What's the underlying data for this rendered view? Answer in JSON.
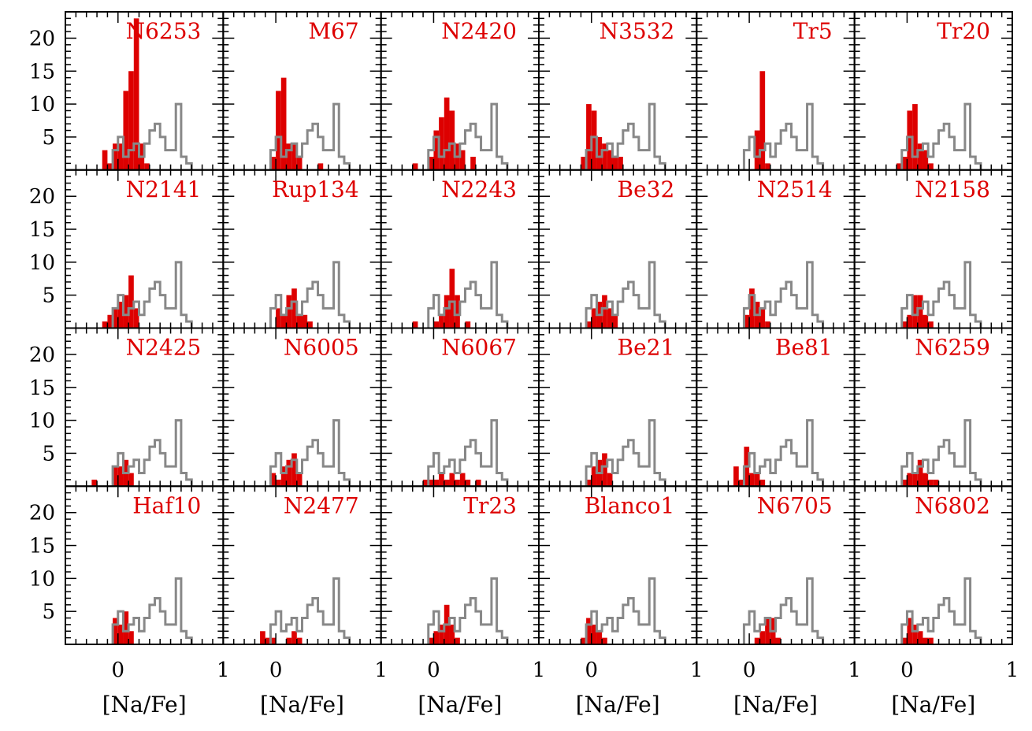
{
  "chart_data": {
    "type": "histogram-grid",
    "xlabel": "[Na/Fe]",
    "x_tick_labels": [
      "0",
      "1"
    ],
    "y_tick_labels": [
      "5",
      "10",
      "15",
      "20"
    ],
    "xlim": [
      -0.5,
      1.0
    ],
    "ylim": [
      0,
      24
    ],
    "bin_width": 0.05,
    "colors": {
      "cluster": "#dd0000",
      "reference": "#888888",
      "axes": "#000000"
    },
    "reference_histogram": {
      "bin_starts": [
        -0.05,
        0.0,
        0.05,
        0.1,
        0.15,
        0.2,
        0.25,
        0.3,
        0.35,
        0.4,
        0.45,
        0.5,
        0.55,
        0.6,
        0.65
      ],
      "counts": [
        3,
        5,
        2,
        3,
        4,
        2,
        4,
        6,
        7,
        5,
        3,
        3,
        10,
        2,
        1
      ]
    },
    "panels": [
      {
        "title": "N6253",
        "bin_starts": [
          -0.15,
          -0.1,
          -0.05,
          0.0,
          0.05,
          0.1,
          0.15,
          0.2,
          0.25
        ],
        "counts": [
          3,
          1,
          4,
          4,
          12,
          15,
          23,
          4,
          1
        ]
      },
      {
        "title": "M67",
        "bin_starts": [
          -0.05,
          0.0,
          0.05,
          0.1,
          0.15,
          0.2,
          0.25,
          0.3,
          0.35,
          0.4
        ],
        "counts": [
          2,
          12,
          14,
          4,
          4,
          2,
          0,
          0,
          0,
          1
        ]
      },
      {
        "title": "N2420",
        "bin_starts": [
          -0.2,
          -0.15,
          -0.1,
          -0.05,
          0.0,
          0.05,
          0.1,
          0.15,
          0.2,
          0.25,
          0.3,
          0.35
        ],
        "counts": [
          1,
          0,
          0,
          2,
          6,
          8,
          11,
          9,
          4,
          3,
          0,
          2
        ]
      },
      {
        "title": "N3532",
        "bin_starts": [
          -0.1,
          -0.05,
          0.0,
          0.05,
          0.1,
          0.15,
          0.2,
          0.25
        ],
        "counts": [
          2,
          10,
          9,
          5,
          4,
          3,
          2,
          2
        ]
      },
      {
        "title": "Tr5",
        "bin_starts": [
          0.05,
          0.1,
          0.15
        ],
        "counts": [
          6,
          15,
          1
        ]
      },
      {
        "title": "Tr20",
        "bin_starts": [
          -0.1,
          -0.05,
          0.0,
          0.05,
          0.1,
          0.15,
          0.2
        ],
        "counts": [
          1,
          2,
          9,
          10,
          4,
          3,
          1
        ]
      },
      {
        "title": "N2141",
        "bin_starts": [
          -0.15,
          -0.1,
          -0.05,
          0.0,
          0.05,
          0.1,
          0.15
        ],
        "counts": [
          1,
          2,
          3,
          4,
          5,
          8,
          3
        ]
      },
      {
        "title": "Rup134",
        "bin_starts": [
          0.0,
          0.05,
          0.1,
          0.15,
          0.2,
          0.25,
          0.3
        ],
        "counts": [
          3,
          2,
          5,
          6,
          2,
          2,
          1
        ]
      },
      {
        "title": "N2243",
        "bin_starts": [
          -0.2,
          -0.15,
          -0.1,
          -0.05,
          0.0,
          0.05,
          0.1,
          0.15,
          0.2,
          0.25,
          0.3
        ],
        "counts": [
          1,
          0,
          0,
          0,
          1,
          2,
          5,
          9,
          5,
          0,
          1
        ]
      },
      {
        "title": "Be32",
        "bin_starts": [
          -0.05,
          0.0,
          0.05,
          0.1,
          0.15,
          0.2
        ],
        "counts": [
          1,
          3,
          4,
          5,
          3,
          2
        ]
      },
      {
        "title": "N2514",
        "bin_starts": [
          -0.05,
          0.0,
          0.05,
          0.1,
          0.15
        ],
        "counts": [
          2,
          6,
          4,
          3,
          1
        ]
      },
      {
        "title": "N2158",
        "bin_starts": [
          -0.05,
          0.0,
          0.05,
          0.1,
          0.15,
          0.2
        ],
        "counts": [
          1,
          2,
          5,
          5,
          2,
          1
        ]
      },
      {
        "title": "N2425",
        "bin_starts": [
          -0.25,
          -0.2,
          -0.15,
          -0.1,
          -0.05,
          0.0,
          0.05,
          0.1
        ],
        "counts": [
          1,
          0,
          0,
          0,
          3,
          3,
          4,
          2
        ]
      },
      {
        "title": "N6005",
        "bin_starts": [
          -0.05,
          0.0,
          0.05,
          0.1,
          0.15,
          0.2
        ],
        "counts": [
          2,
          1,
          3,
          4,
          5,
          2
        ]
      },
      {
        "title": "N6067",
        "bin_starts": [
          -0.1,
          -0.05,
          0.0,
          0.05,
          0.1,
          0.15,
          0.2,
          0.25,
          0.3,
          0.35,
          0.4
        ],
        "counts": [
          1,
          1,
          1,
          2,
          1,
          2,
          1,
          2,
          1,
          0,
          1
        ]
      },
      {
        "title": "Be21",
        "bin_starts": [
          -0.05,
          0.0,
          0.05,
          0.1,
          0.15
        ],
        "counts": [
          1,
          3,
          4,
          5,
          2
        ]
      },
      {
        "title": "Be81",
        "bin_starts": [
          -0.15,
          -0.1,
          -0.05,
          0.0,
          0.05,
          0.1
        ],
        "counts": [
          3,
          1,
          6,
          2,
          2,
          1
        ]
      },
      {
        "title": "N6259",
        "bin_starts": [
          -0.05,
          0.0,
          0.05,
          0.1,
          0.15,
          0.2,
          0.25
        ],
        "counts": [
          1,
          2,
          2,
          4,
          2,
          1,
          1
        ]
      },
      {
        "title": "Haf10",
        "bin_starts": [
          -0.05,
          0.0,
          0.05,
          0.1
        ],
        "counts": [
          4,
          3,
          5,
          2
        ]
      },
      {
        "title": "N2477",
        "bin_starts": [
          -0.15,
          -0.1,
          -0.05,
          0.0,
          0.05,
          0.1,
          0.15,
          0.2
        ],
        "counts": [
          2,
          1,
          1,
          0,
          0,
          1,
          2,
          1
        ]
      },
      {
        "title": "Tr23",
        "bin_starts": [
          -0.05,
          0.0,
          0.05,
          0.1,
          0.15,
          0.2
        ],
        "counts": [
          1,
          2,
          3,
          6,
          3,
          1
        ]
      },
      {
        "title": "Blanco1",
        "bin_starts": [
          -0.1,
          -0.05,
          0.0,
          0.05,
          0.1
        ],
        "counts": [
          1,
          4,
          3,
          2,
          1
        ]
      },
      {
        "title": "N6705",
        "bin_starts": [
          0.05,
          0.1,
          0.15,
          0.2,
          0.25
        ],
        "counts": [
          1,
          2,
          4,
          4,
          1
        ]
      },
      {
        "title": "N6802",
        "bin_starts": [
          -0.05,
          0.0,
          0.05,
          0.1,
          0.15,
          0.2
        ],
        "counts": [
          1,
          4,
          3,
          2,
          1,
          1
        ]
      }
    ]
  }
}
